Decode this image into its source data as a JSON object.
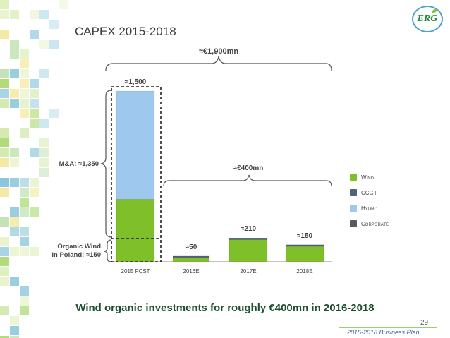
{
  "slide": {
    "title": "CAPEX 2015-2018",
    "subtitle": "Wind organic investments for roughly €400mn in 2016-2018",
    "page_number": "29",
    "footer": "2015-2018 Business Plan",
    "logo_text": "ERG"
  },
  "chart_data": {
    "type": "bar",
    "stacked": true,
    "categories": [
      "2015 FCST",
      "2016E",
      "2017E",
      "2018E"
    ],
    "ylim": [
      0,
      1500
    ],
    "grid": false,
    "legend_position": "right",
    "series": [
      {
        "name": "Wind",
        "color": "#7fbf2a",
        "values": [
          550,
          35,
          195,
          135
        ]
      },
      {
        "name": "CCGT",
        "color": "#4f6478",
        "values": [
          0,
          15,
          15,
          15
        ]
      },
      {
        "name": "Hydro",
        "color": "#9fc8ee",
        "values": [
          950,
          0,
          0,
          0
        ]
      },
      {
        "name": "Corporate",
        "color": "#5a5a5a",
        "values": [
          0,
          0,
          0,
          0
        ]
      }
    ],
    "data_labels": [
      "≈1,500",
      "≈50",
      "≈210",
      "≈150"
    ],
    "annotations": {
      "total_label": "≈€1,900mn",
      "period_label": "≈€400mn",
      "ma_label": "M&A: ≈1,350",
      "organic_label_line1": "Organic Wind",
      "organic_label_line2": "in Poland: ≈150"
    }
  }
}
